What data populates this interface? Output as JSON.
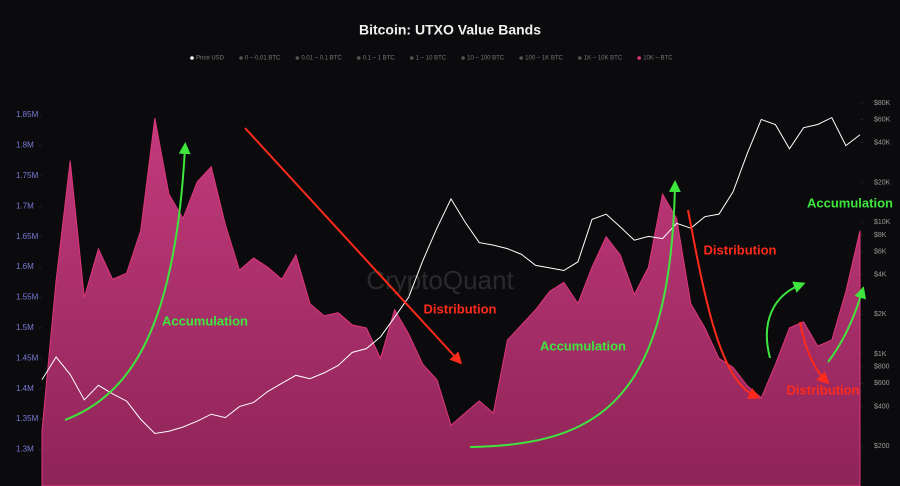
{
  "chart_data": {
    "type": "area-line",
    "title": "Bitcoin: UTXO Value Bands",
    "watermark": "CryptoQuant",
    "series": [
      {
        "name": "Price USD",
        "color": "#ffffff",
        "axis": "y2",
        "values": [
          640,
          950,
          700,
          450,
          580,
          500,
          440,
          320,
          250,
          260,
          280,
          310,
          350,
          330,
          400,
          430,
          520,
          600,
          690,
          650,
          720,
          820,
          1030,
          1100,
          1350,
          1900,
          2700,
          5100,
          9000,
          15000,
          10000,
          7000,
          6700,
          6300,
          5700,
          4700,
          4500,
          4300,
          5000,
          10500,
          11500,
          9200,
          7300,
          7800,
          7500,
          9800,
          9000,
          11000,
          11500,
          17000,
          33000,
          60000,
          55000,
          36000,
          52000,
          55000,
          62000,
          38000,
          46000
        ]
      },
      {
        "name": "10K – BTC",
        "color": "#e0357a",
        "axis": "y",
        "values": [
          1331000,
          1578000,
          1775000,
          1550000,
          1630000,
          1580000,
          1590000,
          1660000,
          1845000,
          1720000,
          1680000,
          1740000,
          1765000,
          1670000,
          1595000,
          1615000,
          1600000,
          1580000,
          1620000,
          1540000,
          1520000,
          1525000,
          1505000,
          1500000,
          1450000,
          1530000,
          1490000,
          1440000,
          1415000,
          1340000,
          1360000,
          1380000,
          1360000,
          1480000,
          1505000,
          1530000,
          1560000,
          1575000,
          1540000,
          1600000,
          1650000,
          1620000,
          1555000,
          1600000,
          1720000,
          1680000,
          1540000,
          1500000,
          1450000,
          1435000,
          1405000,
          1385000,
          1440000,
          1500000,
          1510000,
          1470000,
          1480000,
          1560000,
          1660000
        ]
      }
    ],
    "legend_hidden": [
      "0 – 0.01 BTC",
      "0.01 – 0.1 BTC",
      "0.1 – 1 BTC",
      "1 – 10 BTC",
      "10 – 100 BTC",
      "100 – 1K BTC",
      "1K – 10K BTC"
    ],
    "ylim": [
      1240000,
      1883000
    ],
    "yticks": [
      {
        "value": 1300000,
        "label": "1.3M"
      },
      {
        "value": 1350000,
        "label": "1.35M"
      },
      {
        "value": 1400000,
        "label": "1.4M"
      },
      {
        "value": 1450000,
        "label": "1.45M"
      },
      {
        "value": 1500000,
        "label": "1.5M"
      },
      {
        "value": 1550000,
        "label": "1.55M"
      },
      {
        "value": 1600000,
        "label": "1.6M"
      },
      {
        "value": 1650000,
        "label": "1.65M"
      },
      {
        "value": 1700000,
        "label": "1.7M"
      },
      {
        "value": 1750000,
        "label": "1.75M"
      },
      {
        "value": 1800000,
        "label": "1.8M"
      },
      {
        "value": 1850000,
        "label": "1.85M"
      }
    ],
    "y2lim": [
      100,
      92000
    ],
    "y2log": true,
    "y2ticks": [
      {
        "value": 200,
        "label": "$200"
      },
      {
        "value": 400,
        "label": "$400"
      },
      {
        "value": 600,
        "label": "$600"
      },
      {
        "value": 800,
        "label": "$800"
      },
      {
        "value": 1000,
        "label": "$1K"
      },
      {
        "value": 2000,
        "label": "$2K"
      },
      {
        "value": 4000,
        "label": "$4K"
      },
      {
        "value": 6000,
        "label": "$6K"
      },
      {
        "value": 8000,
        "label": "$8K"
      },
      {
        "value": 10000,
        "label": "$10K"
      },
      {
        "value": 20000,
        "label": "$20K"
      },
      {
        "value": 40000,
        "label": "$40K"
      },
      {
        "value": 60000,
        "label": "$60K"
      },
      {
        "value": 80000,
        "label": "$80K"
      }
    ],
    "annotations": [
      {
        "text": "Accumulation",
        "color": "#3ee63e"
      },
      {
        "text": "Distribution",
        "color": "#ff2a1a"
      },
      {
        "text": "Accumulation",
        "color": "#3ee63e"
      },
      {
        "text": "Distribution",
        "color": "#ff2a1a"
      },
      {
        "text": "Accumulation",
        "color": "#3ee63e"
      },
      {
        "text": "Distribution",
        "color": "#ff2a1a"
      }
    ]
  }
}
